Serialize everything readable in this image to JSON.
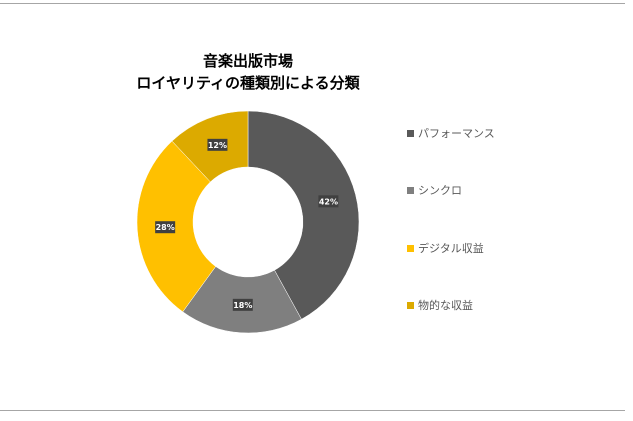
{
  "chart_data": {
    "type": "pie",
    "subtype": "donut",
    "title": [
      "音楽出版市場",
      "ロイヤリティの種類別による分類"
    ],
    "categories": [
      "パフォーマンス",
      "シンクロ",
      "デジタル収益",
      "物的な収益"
    ],
    "values": [
      42,
      18,
      28,
      12
    ],
    "labels": [
      "42%",
      "18%",
      "28%",
      "12%"
    ],
    "colors": [
      "#595959",
      "#7f7f7f",
      "#ffc000",
      "#dcaa00"
    ],
    "legend": "right"
  }
}
